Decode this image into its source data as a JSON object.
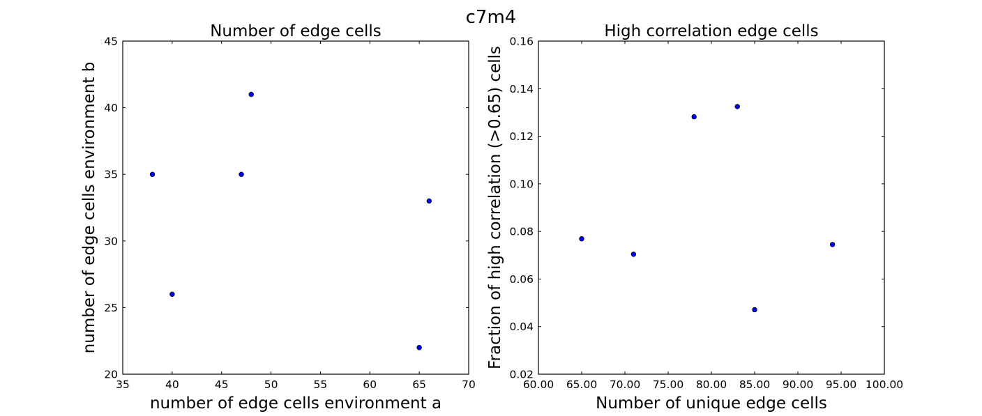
{
  "figure": {
    "title": "c7m4"
  },
  "chart_data": [
    {
      "type": "scatter",
      "title": "Number of edge cells",
      "xlabel": "number of edge cells environment a",
      "ylabel": "number of edge cells environment b",
      "xlim": [
        35,
        70
      ],
      "ylim": [
        20,
        45
      ],
      "xticks": [
        35,
        40,
        45,
        50,
        55,
        60,
        65,
        70
      ],
      "yticks": [
        20,
        25,
        30,
        35,
        40,
        45
      ],
      "tick_decimals": 0,
      "grid": false,
      "marker_color": "#0000ff",
      "points": [
        {
          "x": 38,
          "y": 35
        },
        {
          "x": 40,
          "y": 26
        },
        {
          "x": 47,
          "y": 35
        },
        {
          "x": 48,
          "y": 41
        },
        {
          "x": 65,
          "y": 22
        },
        {
          "x": 66,
          "y": 33
        }
      ]
    },
    {
      "type": "scatter",
      "title": "High correlation edge cells",
      "xlabel": "Number of unique edge cells",
      "ylabel": "Fraction of high correlation (>0.65) cells",
      "xlim": [
        60,
        100
      ],
      "ylim": [
        0.02,
        0.16
      ],
      "xticks": [
        60,
        65,
        70,
        75,
        80,
        85,
        90,
        95,
        100
      ],
      "yticks": [
        0.02,
        0.04,
        0.06,
        0.08,
        0.1,
        0.12,
        0.14,
        0.16
      ],
      "tick_decimals": 2,
      "grid": false,
      "marker_color": "#0000ff",
      "points": [
        {
          "x": 65,
          "y": 0.0769
        },
        {
          "x": 71,
          "y": 0.0704
        },
        {
          "x": 78,
          "y": 0.1282
        },
        {
          "x": 83,
          "y": 0.1325
        },
        {
          "x": 85,
          "y": 0.0471
        },
        {
          "x": 94,
          "y": 0.0745
        }
      ]
    }
  ]
}
